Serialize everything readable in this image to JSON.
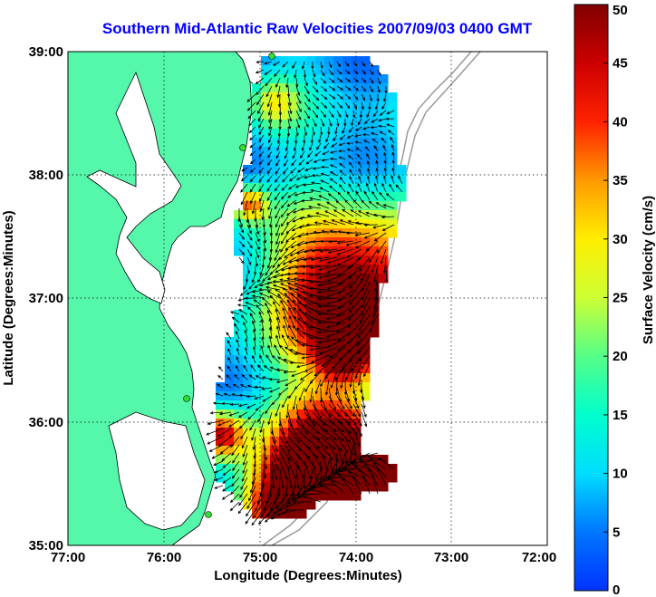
{
  "title": "Southern Mid-Atlantic Raw Velocities 2007/09/03 0400 GMT",
  "xaxis": {
    "label": "Longitude (Degrees:Minutes)",
    "ticks": [
      "77:00",
      "76:00",
      "75:00",
      "74:00",
      "73:00",
      "72:00"
    ]
  },
  "yaxis": {
    "label": "Latitude (Degrees:Minutes)",
    "ticks": [
      "39:00",
      "38:00",
      "37:00",
      "36:00",
      "35:00"
    ]
  },
  "colorbar": {
    "label": "Surface Velocity (cm/s)",
    "ticks": [
      "50",
      "45",
      "40",
      "35",
      "30",
      "25",
      "20",
      "15",
      "10",
      "5",
      "0"
    ],
    "min": 0,
    "max": 50
  },
  "colors": {
    "title": "#0000ff",
    "land": "#55f7aa",
    "water": "#ffffff",
    "coastline": "#000000",
    "bathymetry": "#999999",
    "station": "#33dd33"
  }
}
